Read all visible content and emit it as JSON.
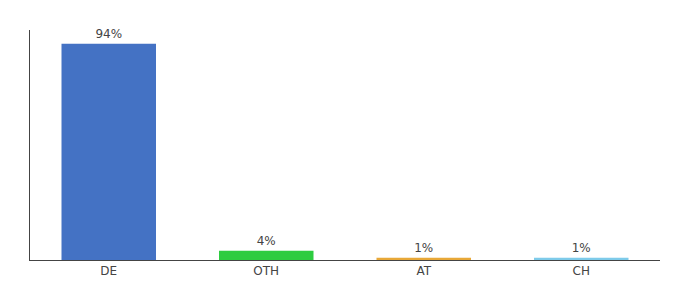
{
  "chart_data": {
    "type": "bar",
    "categories": [
      "DE",
      "OTH",
      "AT",
      "CH"
    ],
    "values": [
      94,
      4,
      1,
      1
    ],
    "value_labels": [
      "94%",
      "4%",
      "1%",
      "1%"
    ],
    "colors": [
      "#4472c4",
      "#2ecc40",
      "#e8a838",
      "#7ecbea"
    ],
    "ylim": [
      0,
      100
    ],
    "data_labels": true,
    "tick_labels": "x",
    "grid": false
  }
}
